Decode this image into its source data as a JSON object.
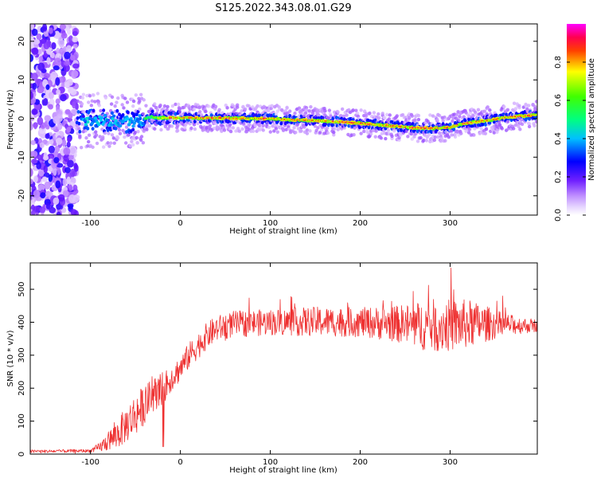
{
  "title": "S125.2022.343.08.01.G29",
  "colors": {
    "snr_line": "#ee3030",
    "colormap": [
      "#ffffff",
      "#d8b8ff",
      "#a050ff",
      "#5000ff",
      "#0000ff",
      "#00e0ff",
      "#00ff60",
      "#80ff00",
      "#ffff00",
      "#ff4000",
      "#ff0060",
      "#ff00ff"
    ]
  },
  "chart_data": [
    {
      "type": "heatmap",
      "name": "spectrogram",
      "xlabel": "Height of straight line (km)",
      "ylabel": "Frequency (Hz)",
      "xlim": [
        -167,
        397
      ],
      "ylim": [
        -25,
        24.5
      ],
      "xticks": [
        -100,
        0,
        100,
        200,
        300
      ],
      "yticks": [
        -20,
        -10,
        0,
        10,
        20
      ],
      "ridge": {
        "x": [
          -120,
          -100,
          -80,
          -60,
          -45,
          -35,
          -25,
          0,
          50,
          100,
          120,
          150,
          180,
          200,
          220,
          240,
          260,
          280,
          300,
          310,
          330,
          350,
          370,
          390,
          397
        ],
        "freq": [
          -1.0,
          -0.5,
          -0.6,
          -0.8,
          -0.5,
          0.5,
          0.2,
          0.2,
          0.1,
          0.0,
          -0.3,
          -0.5,
          -0.9,
          -1.2,
          -1.6,
          -2.0,
          -2.4,
          -2.5,
          -2.3,
          -1.5,
          -0.8,
          -0.2,
          0.5,
          0.8,
          1.0
        ]
      },
      "colorbar": {
        "label": "Normalized spectral amplitude",
        "range": [
          0,
          1
        ],
        "ticks": [
          0.0,
          0.2,
          0.4,
          0.6,
          0.8
        ]
      }
    },
    {
      "type": "line",
      "name": "snr",
      "xlabel": "Height of straight line (km)",
      "ylabel": "SNR (10 * v/v)",
      "xlim": [
        -167,
        397
      ],
      "ylim": [
        0,
        580
      ],
      "xticks": [
        -100,
        0,
        100,
        200,
        300
      ],
      "yticks": [
        0,
        100,
        200,
        300,
        400,
        500
      ],
      "envelope": {
        "x": [
          -167,
          -100,
          -90,
          -80,
          -70,
          -60,
          -50,
          -40,
          -30,
          -20,
          -10,
          0,
          10,
          20,
          30,
          40,
          60,
          100,
          150,
          200,
          240,
          260,
          280,
          300,
          320,
          340,
          360,
          380,
          397
        ],
        "mean": [
          8,
          10,
          20,
          40,
          60,
          90,
          120,
          150,
          180,
          200,
          230,
          260,
          300,
          330,
          360,
          380,
          395,
          400,
          402,
          400,
          395,
          390,
          390,
          390,
          395,
          395,
          393,
          390,
          390
        ],
        "amp": [
          5,
          5,
          15,
          30,
          45,
          55,
          65,
          60,
          50,
          50,
          40,
          40,
          40,
          40,
          40,
          40,
          40,
          40,
          45,
          45,
          55,
          70,
          80,
          80,
          75,
          55,
          35,
          25,
          20
        ]
      }
    }
  ]
}
